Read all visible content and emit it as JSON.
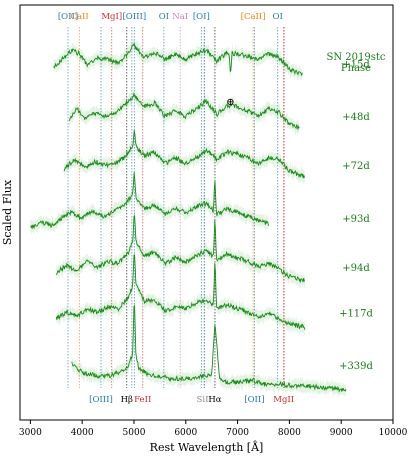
{
  "chart_data": {
    "type": "line",
    "xlabel": "Rest Wavelength [Å]",
    "ylabel": "Scaled Flux",
    "xlim": [
      2800,
      10000
    ],
    "xticks": [
      3000,
      4000,
      5000,
      6000,
      7000,
      8000,
      9000,
      10000
    ],
    "yticks_shown": false,
    "grid": false,
    "annotation_title": [
      "SN 2019stc",
      "Phase"
    ],
    "earth_symbol": "⊕",
    "label_color": "#1a7a1a",
    "series": [
      {
        "name": "+15d",
        "offset": 9.0,
        "range": [
          3450,
          8250
        ],
        "points": [
          [
            3450,
            9.35
          ],
          [
            3600,
            9.55
          ],
          [
            3800,
            9.8
          ],
          [
            3950,
            9.7
          ],
          [
            4100,
            9.4
          ],
          [
            4300,
            9.6
          ],
          [
            4500,
            9.55
          ],
          [
            4700,
            9.45
          ],
          [
            4900,
            9.75
          ],
          [
            5000,
            9.95
          ],
          [
            5200,
            9.6
          ],
          [
            5400,
            9.75
          ],
          [
            5600,
            9.55
          ],
          [
            5800,
            9.7
          ],
          [
            6000,
            9.55
          ],
          [
            6200,
            9.7
          ],
          [
            6400,
            9.8
          ],
          [
            6600,
            9.5
          ],
          [
            6800,
            9.75
          ],
          [
            7000,
            9.7
          ],
          [
            7200,
            9.65
          ],
          [
            7400,
            9.55
          ],
          [
            7600,
            9.7
          ],
          [
            7800,
            9.6
          ],
          [
            8000,
            9.3
          ],
          [
            8250,
            9.15
          ]
        ]
      },
      {
        "name": "+48d",
        "offset": 7.6,
        "range": [
          3750,
          8200
        ],
        "points": [
          [
            3750,
            7.95
          ],
          [
            3900,
            8.25
          ],
          [
            4050,
            8.0
          ],
          [
            4200,
            8.15
          ],
          [
            4400,
            8.05
          ],
          [
            4600,
            8.1
          ],
          [
            4800,
            8.35
          ],
          [
            5000,
            8.6
          ],
          [
            5200,
            8.3
          ],
          [
            5400,
            8.4
          ],
          [
            5600,
            8.05
          ],
          [
            5800,
            8.2
          ],
          [
            6000,
            8.05
          ],
          [
            6200,
            8.25
          ],
          [
            6400,
            8.45
          ],
          [
            6600,
            8.1
          ],
          [
            6800,
            8.35
          ],
          [
            7000,
            8.3
          ],
          [
            7200,
            8.2
          ],
          [
            7400,
            8.05
          ],
          [
            7600,
            8.25
          ],
          [
            7800,
            8.15
          ],
          [
            8000,
            7.85
          ],
          [
            8200,
            7.75
          ]
        ]
      },
      {
        "name": "+72d",
        "offset": 6.3,
        "range": [
          3650,
          8300
        ],
        "points": [
          [
            3650,
            6.65
          ],
          [
            3850,
            6.9
          ],
          [
            4050,
            6.7
          ],
          [
            4250,
            6.85
          ],
          [
            4450,
            6.75
          ],
          [
            4650,
            6.8
          ],
          [
            4850,
            7.0
          ],
          [
            5000,
            7.3
          ],
          [
            5200,
            7.0
          ],
          [
            5400,
            7.1
          ],
          [
            5600,
            6.8
          ],
          [
            5800,
            6.95
          ],
          [
            6000,
            6.8
          ],
          [
            6200,
            6.95
          ],
          [
            6400,
            7.15
          ],
          [
            6600,
            6.9
          ],
          [
            6800,
            7.1
          ],
          [
            7000,
            7.05
          ],
          [
            7200,
            6.95
          ],
          [
            7400,
            6.8
          ],
          [
            7600,
            6.95
          ],
          [
            7800,
            6.9
          ],
          [
            8000,
            6.6
          ],
          [
            8300,
            6.45
          ]
        ]
      },
      {
        "name": "+93d",
        "offset": 4.9,
        "range": [
          3000,
          7600
        ],
        "points": [
          [
            3000,
            5.1
          ],
          [
            3200,
            5.25
          ],
          [
            3400,
            5.15
          ],
          [
            3600,
            5.35
          ],
          [
            3800,
            5.5
          ],
          [
            4000,
            5.35
          ],
          [
            4200,
            5.55
          ],
          [
            4400,
            5.4
          ],
          [
            4600,
            5.5
          ],
          [
            4800,
            5.7
          ],
          [
            5000,
            6.0
          ],
          [
            5200,
            5.6
          ],
          [
            5400,
            5.7
          ],
          [
            5600,
            5.45
          ],
          [
            5800,
            5.6
          ],
          [
            6000,
            5.5
          ],
          [
            6200,
            5.65
          ],
          [
            6400,
            5.75
          ],
          [
            6600,
            5.45
          ],
          [
            6800,
            5.6
          ],
          [
            7000,
            5.5
          ],
          [
            7200,
            5.4
          ],
          [
            7400,
            5.3
          ],
          [
            7600,
            5.2
          ]
        ]
      },
      {
        "name": "+94d",
        "offset": 3.6,
        "range": [
          3500,
          8300
        ],
        "points": [
          [
            3500,
            3.9
          ],
          [
            3700,
            4.1
          ],
          [
            3900,
            3.95
          ],
          [
            4100,
            4.2
          ],
          [
            4300,
            4.05
          ],
          [
            4500,
            4.2
          ],
          [
            4700,
            4.15
          ],
          [
            4900,
            4.45
          ],
          [
            5000,
            4.85
          ],
          [
            5200,
            4.35
          ],
          [
            5400,
            4.45
          ],
          [
            5600,
            4.15
          ],
          [
            5800,
            4.3
          ],
          [
            6000,
            4.2
          ],
          [
            6200,
            4.35
          ],
          [
            6400,
            4.5
          ],
          [
            6600,
            4.25
          ],
          [
            6800,
            4.4
          ],
          [
            7000,
            4.3
          ],
          [
            7200,
            4.2
          ],
          [
            7400,
            4.05
          ],
          [
            7600,
            4.15
          ],
          [
            7800,
            4.0
          ],
          [
            8000,
            3.8
          ],
          [
            8300,
            3.7
          ]
        ]
      },
      {
        "name": "+117d",
        "offset": 2.4,
        "range": [
          3500,
          8300
        ],
        "points": [
          [
            3500,
            2.7
          ],
          [
            3700,
            2.85
          ],
          [
            3900,
            2.75
          ],
          [
            4100,
            2.95
          ],
          [
            4300,
            2.85
          ],
          [
            4500,
            3.0
          ],
          [
            4700,
            2.95
          ],
          [
            4900,
            3.25
          ],
          [
            5000,
            3.7
          ],
          [
            5200,
            3.15
          ],
          [
            5400,
            3.2
          ],
          [
            5600,
            2.9
          ],
          [
            5800,
            3.0
          ],
          [
            6000,
            2.95
          ],
          [
            6200,
            3.1
          ],
          [
            6400,
            3.2
          ],
          [
            6600,
            2.95
          ],
          [
            6800,
            3.05
          ],
          [
            7000,
            2.95
          ],
          [
            7200,
            2.85
          ],
          [
            7400,
            2.75
          ],
          [
            7600,
            2.8
          ],
          [
            7800,
            2.7
          ],
          [
            8000,
            2.55
          ],
          [
            8300,
            2.45
          ]
        ]
      },
      {
        "name": "+339d",
        "offset": 1.0,
        "range": [
          3800,
          9100
        ],
        "points": [
          [
            3800,
            1.5
          ],
          [
            4000,
            1.25
          ],
          [
            4200,
            1.2
          ],
          [
            4400,
            1.15
          ],
          [
            4600,
            1.2
          ],
          [
            4800,
            1.3
          ],
          [
            4900,
            1.45
          ],
          [
            5000,
            1.9
          ],
          [
            5100,
            1.35
          ],
          [
            5300,
            1.2
          ],
          [
            5500,
            1.15
          ],
          [
            5700,
            1.1
          ],
          [
            5900,
            1.1
          ],
          [
            6100,
            1.1
          ],
          [
            6300,
            1.15
          ],
          [
            6500,
            1.2
          ],
          [
            6563,
            2.6
          ],
          [
            6650,
            1.1
          ],
          [
            6800,
            1.0
          ],
          [
            7000,
            1.0
          ],
          [
            7300,
            1.05
          ],
          [
            7500,
            0.95
          ],
          [
            7800,
            0.95
          ],
          [
            8100,
            0.9
          ],
          [
            8400,
            0.9
          ],
          [
            8700,
            0.85
          ],
          [
            9100,
            0.8
          ]
        ]
      }
    ],
    "sharp_features": [
      {
        "series": 0,
        "x": 6863,
        "dy": -0.55
      },
      {
        "series": 3,
        "x": 6563,
        "dy": 0.9
      },
      {
        "series": 4,
        "x": 6563,
        "dy": 1.1
      },
      {
        "series": 5,
        "x": 6563,
        "dy": 1.3
      },
      {
        "series": 2,
        "x": 5007,
        "dy": 0.4
      },
      {
        "series": 3,
        "x": 5007,
        "dy": 0.6
      },
      {
        "series": 4,
        "x": 5007,
        "dy": 0.7
      },
      {
        "series": 5,
        "x": 5007,
        "dy": 0.9
      },
      {
        "series": 6,
        "x": 5007,
        "dy": 1.5
      }
    ],
    "top_lines": [
      {
        "label": "[OII]",
        "x": 3727,
        "color": "#1f77b4"
      },
      {
        "label": "CaII",
        "x": 3950,
        "color": "#ff7f0e"
      },
      {
        "label": "MgI]",
        "x": 4571,
        "color": "#d62728"
      },
      {
        "label": "[OIII]",
        "x": 5007,
        "color": "#1f77b4"
      },
      {
        "label": "OI",
        "x": 5577,
        "color": "#1f77b4"
      },
      {
        "label": "NaI",
        "x": 5893,
        "color": "#e377c2"
      },
      {
        "label": "[OI]",
        "x": 6300,
        "color": "#1f77b4"
      },
      {
        "label": "[CaII]",
        "x": 7300,
        "color": "#ff7f0e"
      },
      {
        "label": "OI",
        "x": 7774,
        "color": "#1f77b4"
      }
    ],
    "bottom_lines": [
      {
        "label": "[OIII]",
        "x": 4363,
        "color": "#1f77b4"
      },
      {
        "label": "Hβ",
        "x": 4861,
        "color": "#000000"
      },
      {
        "label": "FeII",
        "x": 5169,
        "color": "#d62728"
      },
      {
        "label": "SiII",
        "x": 6355,
        "color": "#888888"
      },
      {
        "label": "Hα",
        "x": 6563,
        "color": "#000000"
      },
      {
        "label": "[OII]",
        "x": 7325,
        "color": "#1f77b4"
      },
      {
        "label": "MgII",
        "x": 7890,
        "color": "#d62728"
      }
    ],
    "extra_lines": [
      {
        "x": 4959,
        "color": "#1f77b4"
      },
      {
        "x": 6364,
        "color": "#1f77b4"
      },
      {
        "x": 7898,
        "color": "#d62728"
      }
    ]
  }
}
